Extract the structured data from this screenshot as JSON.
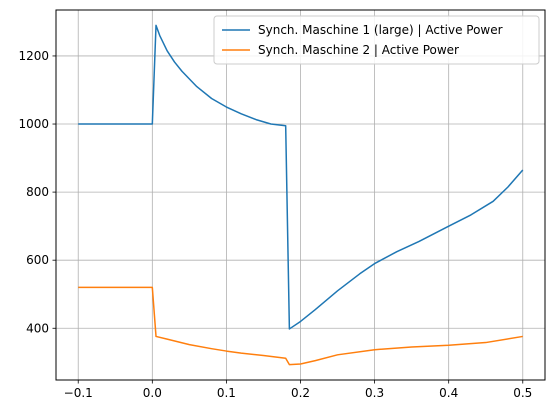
{
  "chart_data": {
    "type": "line",
    "title": "",
    "xlabel": "",
    "ylabel": "",
    "xlim": [
      -0.13,
      0.53
    ],
    "ylim": [
      248,
      1335
    ],
    "xticks": [
      -0.1,
      0.0,
      0.1,
      0.2,
      0.3,
      0.4,
      0.5
    ],
    "xtick_labels": [
      "−0.1",
      "0.0",
      "0.1",
      "0.2",
      "0.3",
      "0.4",
      "0.5"
    ],
    "yticks": [
      400,
      600,
      800,
      1000,
      1200
    ],
    "ytick_labels": [
      "400",
      "600",
      "800",
      "1000",
      "1200"
    ],
    "grid": true,
    "legend_position": "upper right",
    "series": [
      {
        "name": "Synch. Maschine 1 (large) | Active Power",
        "color": "#1f77b4",
        "x": [
          -0.1,
          0.0,
          0.005,
          0.01,
          0.02,
          0.03,
          0.04,
          0.06,
          0.08,
          0.1,
          0.12,
          0.14,
          0.16,
          0.18,
          0.185,
          0.2,
          0.22,
          0.25,
          0.28,
          0.3,
          0.33,
          0.36,
          0.4,
          0.43,
          0.46,
          0.48,
          0.5
        ],
        "y": [
          1000,
          1000,
          1290,
          1260,
          1215,
          1182,
          1155,
          1110,
          1075,
          1050,
          1030,
          1013,
          1000,
          995,
          398,
          420,
          455,
          510,
          560,
          590,
          625,
          655,
          700,
          733,
          773,
          815,
          865
        ]
      },
      {
        "name": "Synch. Maschine 2 | Active Power",
        "color": "#ff7f0e",
        "x": [
          -0.1,
          0.0,
          0.005,
          0.02,
          0.05,
          0.08,
          0.1,
          0.12,
          0.15,
          0.18,
          0.185,
          0.2,
          0.22,
          0.25,
          0.3,
          0.35,
          0.4,
          0.45,
          0.5
        ],
        "y": [
          520,
          520,
          376,
          368,
          352,
          340,
          333,
          327,
          320,
          312,
          293,
          295,
          305,
          322,
          337,
          345,
          350,
          358,
          376
        ]
      }
    ]
  }
}
